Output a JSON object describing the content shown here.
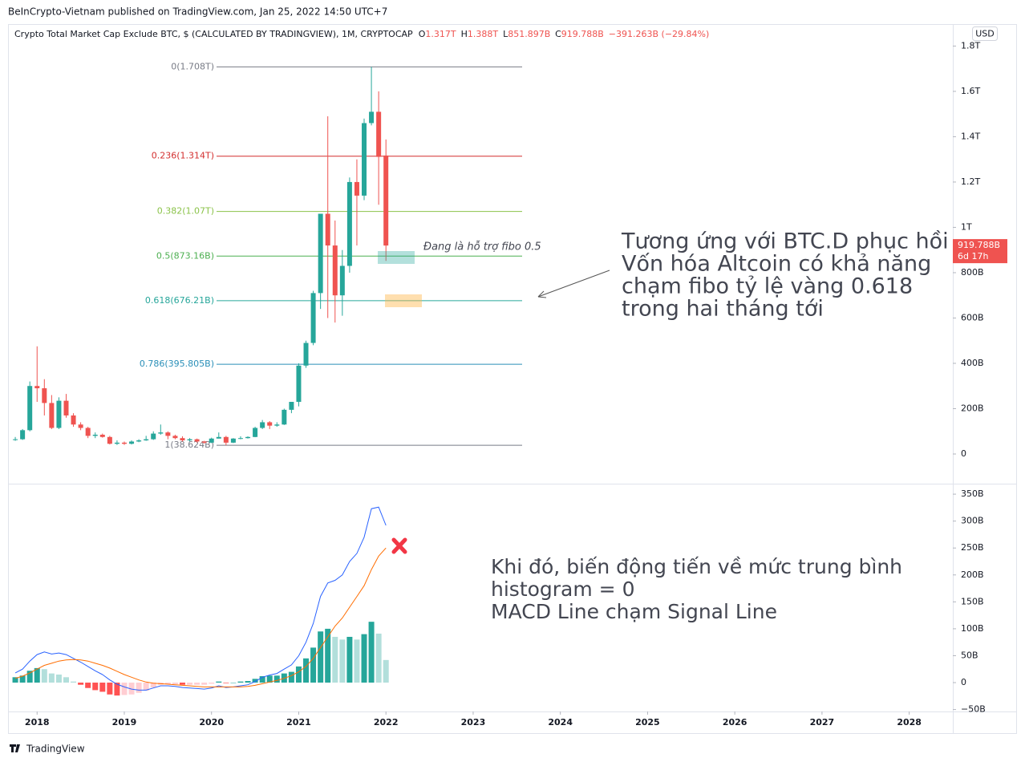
{
  "header": "BeInCrypto-Vietnam published on TradingView.com, Jan 25, 2022 14:50 UTC+7",
  "footer": "TradingView",
  "annotations": {
    "support_note": "Đang là hỗ trợ fibo 0.5",
    "forecast": [
      "Tương ứng với BTC.D phục hồi",
      "Vốn hóa Altcoin có khả năng",
      "chạm fibo tỷ lệ vàng 0.618",
      "trong hai tháng tới"
    ],
    "macd_note": [
      "Khi đó, biến động tiến về mức trung bình",
      "histogram = 0",
      "MACD Line chạm Signal Line"
    ]
  },
  "chart_data": [
    {
      "type": "candlestick",
      "title": "Crypto Total Market Cap Exclude BTC, $ (CALCULATED BY TRADINGVIEW), 1M, CRYPTOCAP",
      "ohlc_legend": [
        {
          "key": "O",
          "label": "1.317T"
        },
        {
          "key": "H",
          "label": "1.388T"
        },
        {
          "key": "L",
          "label": "851.897B"
        },
        {
          "key": "C",
          "label": "919.788B"
        }
      ],
      "change_label": "−391.263B (−29.84%)",
      "currency": "USD",
      "last_price_label": "919.788B",
      "countdown": "6d 17h",
      "up_color": "#26a69a",
      "down_color": "#ef5350",
      "x": [
        "2017-10",
        "2017-11",
        "2017-12",
        "2018-01",
        "2018-02",
        "2018-03",
        "2018-04",
        "2018-05",
        "2018-06",
        "2018-07",
        "2018-08",
        "2018-09",
        "2018-10",
        "2018-11",
        "2018-12",
        "2019-01",
        "2019-02",
        "2019-03",
        "2019-04",
        "2019-05",
        "2019-06",
        "2019-07",
        "2019-08",
        "2019-09",
        "2019-10",
        "2019-11",
        "2019-12",
        "2020-01",
        "2020-02",
        "2020-03",
        "2020-04",
        "2020-05",
        "2020-06",
        "2020-07",
        "2020-08",
        "2020-09",
        "2020-10",
        "2020-11",
        "2020-12",
        "2021-01",
        "2021-02",
        "2021-03",
        "2021-04",
        "2021-05",
        "2021-06",
        "2021-07",
        "2021-08",
        "2021-09",
        "2021-10",
        "2021-11",
        "2021-12",
        "2022-01"
      ],
      "open": [
        62,
        65,
        105,
        300,
        290,
        225,
        115,
        235,
        170,
        130,
        115,
        80,
        85,
        75,
        45,
        50,
        45,
        55,
        60,
        65,
        90,
        95,
        80,
        70,
        60,
        65,
        55,
        50,
        68,
        75,
        50,
        68,
        70,
        75,
        115,
        140,
        125,
        130,
        195,
        230,
        390,
        490,
        710,
        1060,
        920,
        700,
        830,
        1200,
        1140,
        1460,
        1510,
        1317
      ],
      "high": [
        75,
        110,
        320,
        475,
        330,
        260,
        250,
        265,
        180,
        140,
        120,
        95,
        90,
        80,
        60,
        55,
        60,
        65,
        80,
        100,
        130,
        100,
        85,
        78,
        70,
        68,
        58,
        72,
        95,
        80,
        70,
        78,
        78,
        120,
        150,
        145,
        140,
        200,
        230,
        400,
        500,
        720,
        1060,
        1490,
        1030,
        900,
        1220,
        1300,
        1480,
        1708,
        1600,
        1388
      ],
      "low": [
        58,
        62,
        100,
        230,
        170,
        110,
        110,
        160,
        120,
        105,
        70,
        70,
        72,
        42,
        40,
        40,
        42,
        52,
        58,
        62,
        85,
        65,
        65,
        55,
        55,
        50,
        45,
        48,
        68,
        38.624,
        48,
        65,
        68,
        74,
        110,
        110,
        120,
        128,
        180,
        210,
        380,
        480,
        640,
        600,
        580,
        610,
        800,
        920,
        1120,
        1450,
        1100,
        851.897
      ],
      "close": [
        65,
        105,
        300,
        290,
        225,
        115,
        235,
        170,
        130,
        115,
        80,
        85,
        75,
        45,
        50,
        45,
        55,
        60,
        65,
        90,
        95,
        80,
        70,
        60,
        65,
        55,
        50,
        68,
        75,
        50,
        68,
        70,
        75,
        115,
        140,
        125,
        130,
        195,
        230,
        390,
        490,
        710,
        1060,
        920,
        700,
        830,
        1200,
        1140,
        1460,
        1510,
        1311,
        919.788
      ],
      "xlim": [
        "2017-09",
        "2028-07"
      ],
      "ylim": [
        -131,
        1897
      ],
      "yticks": [
        0,
        {
          "value": 200,
          "label": "200B"
        },
        {
          "value": 400,
          "label": "400B"
        },
        {
          "value": 600,
          "label": "600B"
        },
        {
          "value": 800,
          "label": "800B"
        },
        {
          "value": 1000,
          "label": "1T"
        },
        {
          "value": 1200,
          "label": "1.2T"
        },
        {
          "value": 1400,
          "label": "1.4T"
        },
        {
          "value": 1600,
          "label": "1.6T"
        },
        {
          "value": 1800,
          "label": "1.8T"
        }
      ],
      "fib_levels": [
        {
          "label": "0(1.708T)",
          "value": 1708,
          "color": "#787b86"
        },
        {
          "label": "0.236(1.314T)",
          "value": 1314,
          "color": "#d32f2f"
        },
        {
          "label": "0.382(1.07T)",
          "value": 1070,
          "color": "#8bc34a"
        },
        {
          "label": "0.5(873.16B)",
          "value": 873.16,
          "color": "#4caf50"
        },
        {
          "label": "0.618(676.21B)",
          "value": 676.21,
          "color": "#26a69a"
        },
        {
          "label": "0.786(395.805B)",
          "value": 395.805,
          "color": "#2a8fb8"
        },
        {
          "label": "1(38.624B)",
          "value": 38.624,
          "color": "#787b86"
        }
      ]
    },
    {
      "type": "macd",
      "x": [
        "2017-10",
        "2017-11",
        "2017-12",
        "2018-01",
        "2018-02",
        "2018-03",
        "2018-04",
        "2018-05",
        "2018-06",
        "2018-07",
        "2018-08",
        "2018-09",
        "2018-10",
        "2018-11",
        "2018-12",
        "2019-01",
        "2019-02",
        "2019-03",
        "2019-04",
        "2019-05",
        "2019-06",
        "2019-07",
        "2019-08",
        "2019-09",
        "2019-10",
        "2019-11",
        "2019-12",
        "2020-01",
        "2020-02",
        "2020-03",
        "2020-04",
        "2020-05",
        "2020-06",
        "2020-07",
        "2020-08",
        "2020-09",
        "2020-10",
        "2020-11",
        "2020-12",
        "2021-01",
        "2021-02",
        "2021-03",
        "2021-04",
        "2021-05",
        "2021-06",
        "2021-07",
        "2021-08",
        "2021-09",
        "2021-10",
        "2021-11",
        "2021-12",
        "2022-01"
      ],
      "series": [
        {
          "color": "#2962ff",
          "values": [
            18,
            25,
            40,
            52,
            57,
            53,
            55,
            52,
            45,
            38,
            30,
            22,
            15,
            5,
            -3,
            -8,
            -12,
            -14,
            -14,
            -10,
            -6,
            -6,
            -7,
            -9,
            -10,
            -11,
            -12,
            -10,
            -6,
            -9,
            -8,
            -6,
            -4,
            2,
            10,
            14,
            17,
            25,
            33,
            50,
            75,
            110,
            160,
            185,
            190,
            200,
            225,
            240,
            270,
            323,
            326,
            292
          ]
        },
        {
          "color": "#ff6d00",
          "values": [
            8,
            12,
            18,
            25,
            32,
            36,
            40,
            42,
            43,
            42,
            40,
            36,
            32,
            27,
            21,
            15,
            10,
            5,
            1,
            -1,
            -2,
            -3,
            -4,
            -5,
            -6,
            -7,
            -8,
            -8,
            -8,
            -8,
            -8,
            -8,
            -7,
            -5,
            -2,
            1,
            4,
            8,
            13,
            20,
            30,
            45,
            65,
            85,
            105,
            120,
            140,
            160,
            180,
            210,
            235,
            250
          ]
        }
      ],
      "histogram": [
        10,
        13,
        22,
        27,
        25,
        17,
        15,
        10,
        2,
        -4,
        -10,
        -14,
        -17,
        -22,
        -24,
        -23,
        -22,
        -19,
        -15,
        -9,
        -4,
        -3,
        -3,
        -4,
        -4,
        -4,
        -4,
        -2,
        2,
        -1,
        0,
        2,
        3,
        7,
        12,
        13,
        13,
        17,
        20,
        30,
        45,
        65,
        95,
        100,
        85,
        80,
        85,
        80,
        90,
        113,
        91,
        42
      ],
      "histogram_colors": {
        "pos_rising": "#26a69a",
        "pos_falling": "#b2dfdb",
        "neg_falling": "#ff5252",
        "neg_rising": "#ffcdd2"
      },
      "xlim": [
        "2017-09",
        "2028-07"
      ],
      "ylim": [
        -53.6,
        368
      ],
      "yticks": [
        {
          "value": -50,
          "label": "−50B"
        },
        0,
        {
          "value": 50,
          "label": "50B"
        },
        {
          "value": 100,
          "label": "100B"
        },
        {
          "value": 150,
          "label": "150B"
        },
        {
          "value": 200,
          "label": "200B"
        },
        {
          "value": 250,
          "label": "250B"
        },
        {
          "value": 300,
          "label": "300B"
        },
        {
          "value": 350,
          "label": "350B"
        }
      ],
      "xticks": [
        2018,
        2019,
        2020,
        2021,
        2022,
        2023,
        2024,
        2025,
        2026,
        2027,
        2028
      ]
    }
  ]
}
